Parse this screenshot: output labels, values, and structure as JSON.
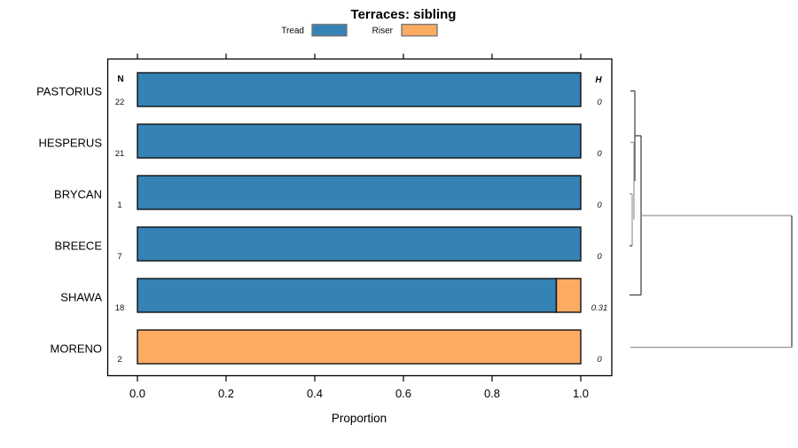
{
  "chart_data": {
    "type": "bar",
    "orientation": "horizontal",
    "stacked": true,
    "title": "Terraces: sibling",
    "xlabel": "Proportion",
    "xlim": [
      0.0,
      1.08
    ],
    "xticks": [
      0.0,
      0.2,
      0.4,
      0.6,
      0.8,
      1.0
    ],
    "xtick_labels": [
      "0.0",
      "0.2",
      "0.4",
      "0.6",
      "0.8",
      "1.0"
    ],
    "categories": [
      "PASTORIUS",
      "HESPERUS",
      "BRYCAN",
      "BREECE",
      "SHAWA",
      "MORENO"
    ],
    "series": [
      {
        "name": "Tread",
        "color": "#3582b4",
        "values": [
          1.0,
          1.0,
          1.0,
          1.0,
          0.945,
          0.0
        ]
      },
      {
        "name": "Riser",
        "color": "#fcab62",
        "values": [
          0.0,
          0.0,
          0.0,
          0.0,
          0.055,
          1.0
        ]
      }
    ],
    "n_header": "N",
    "h_header": "H",
    "n_values": [
      "22",
      "21",
      "1",
      "7",
      "18",
      "2"
    ],
    "h_values": [
      "0",
      "0",
      "0",
      "0",
      "0.31",
      "0"
    ],
    "legend_position": "top",
    "grid": false,
    "right_panel": "cluster-dendrogram"
  }
}
